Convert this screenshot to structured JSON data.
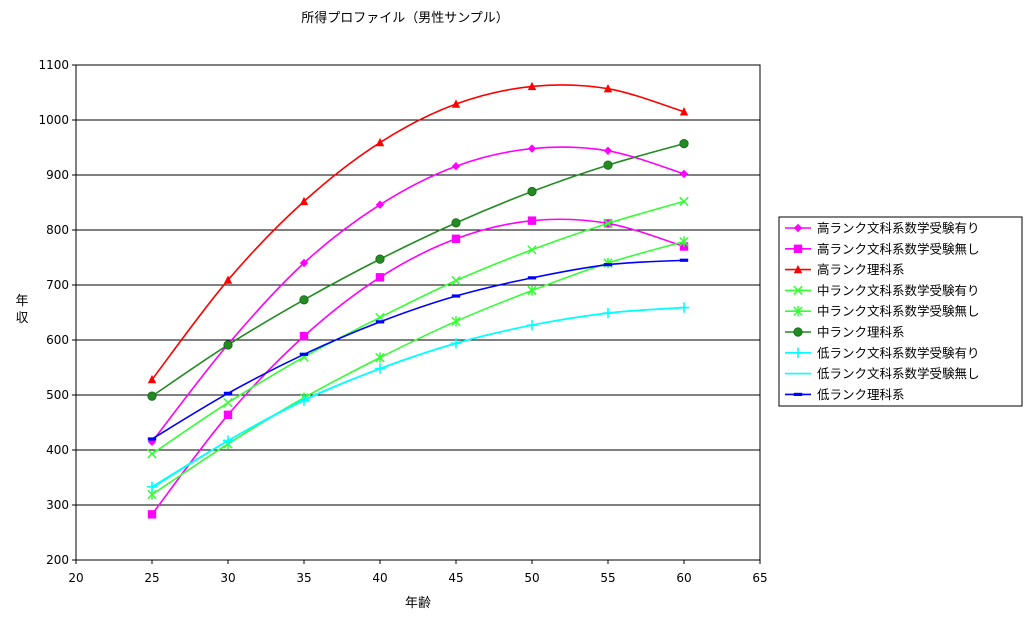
{
  "chart_data": {
    "type": "line",
    "title": "所得プロファイル（男性サンプル）",
    "xlabel": "年齢",
    "ylabel": "年収",
    "xlim": [
      20,
      65
    ],
    "ylim": [
      200,
      1100
    ],
    "xticks": [
      20,
      25,
      30,
      35,
      40,
      45,
      50,
      55,
      60,
      65
    ],
    "yticks": [
      200,
      300,
      400,
      500,
      600,
      700,
      800,
      900,
      1000,
      1100
    ],
    "grid": "horizontal",
    "legend_position": "right",
    "x": [
      25,
      30,
      35,
      40,
      45,
      50,
      55,
      60
    ],
    "series": [
      {
        "name": "高ランク文科系数学受験有り",
        "color": "#FF00FF",
        "marker": "diamond",
        "values": [
          415,
          592,
          740,
          846,
          916,
          948,
          944,
          902
        ]
      },
      {
        "name": "高ランク文科系数学受験無し",
        "color": "#FF00FF",
        "marker": "square",
        "values": [
          283,
          464,
          607,
          714,
          784,
          817,
          812,
          770
        ]
      },
      {
        "name": "高ランク理科系",
        "color": "#FF0000",
        "marker": "triangle",
        "values": [
          528,
          709,
          852,
          959,
          1029,
          1061,
          1057,
          1015
        ]
      },
      {
        "name": "中ランク文科系数学受験有り",
        "color": "#33FF33",
        "marker": "x",
        "values": [
          393,
          486,
          569,
          641,
          708,
          764,
          812,
          852
        ]
      },
      {
        "name": "中ランク文科系数学受験無し",
        "color": "#33FF33",
        "marker": "asterisk",
        "values": [
          319,
          411,
          495,
          568,
          634,
          690,
          740,
          779
        ]
      },
      {
        "name": "中ランク理科系",
        "color": "#228B22",
        "marker": "circle",
        "values": [
          498,
          591,
          673,
          747,
          813,
          870,
          918,
          957
        ]
      },
      {
        "name": "低ランク文科系数学受験有り",
        "color": "#00FFFF",
        "marker": "plus",
        "values": [
          333,
          417,
          490,
          548,
          594,
          627,
          649,
          659
        ]
      },
      {
        "name": "低ランク文科系数学受験無し",
        "color": "#00FFFF",
        "marker": "none",
        "values": [
          331,
          417,
          491,
          548,
          594,
          627,
          649,
          659
        ]
      },
      {
        "name": "低ランク理科系",
        "color": "#0000FF",
        "marker": "dash",
        "values": [
          420,
          503,
          574,
          633,
          680,
          713,
          737,
          745
        ]
      }
    ]
  }
}
